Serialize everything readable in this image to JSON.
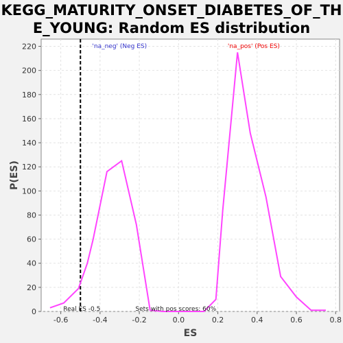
{
  "chart_data": {
    "type": "line",
    "title": "KEGG_MATURITY_ONSET_DIABETES_OF_THE_YOUNG: Random ES distribution",
    "xlabel": "ES",
    "ylabel": "P(ES)",
    "xlim": [
      -0.7,
      0.82
    ],
    "ylim": [
      0,
      226
    ],
    "x_ticks": [
      -0.6,
      -0.4,
      -0.2,
      0.0,
      0.2,
      0.4,
      0.6,
      0.8
    ],
    "x_tick_labels": [
      "-0.6",
      "-0.4",
      "-0.2",
      "0.0",
      "0.2",
      "0.4",
      "0.6",
      "0.8"
    ],
    "y_ticks": [
      0,
      20,
      40,
      60,
      80,
      100,
      120,
      140,
      160,
      180,
      200,
      220
    ],
    "y_tick_labels": [
      "0",
      "20",
      "40",
      "60",
      "80",
      "100",
      "120",
      "140",
      "160",
      "180",
      "200",
      "220"
    ],
    "grid": true,
    "series": [
      {
        "color": "#ff44ff",
        "x": [
          -0.655,
          -0.585,
          -0.51,
          -0.465,
          -0.435,
          -0.365,
          -0.29,
          -0.215,
          -0.145,
          -0.08,
          -0.01,
          0.065,
          0.13,
          0.19,
          0.225,
          0.3,
          0.365,
          0.445,
          0.52,
          0.6,
          0.675,
          0.75
        ],
        "y": [
          3,
          7,
          19,
          40,
          60,
          116,
          125,
          72,
          1,
          0,
          0,
          0,
          0,
          10,
          84,
          215,
          148,
          95,
          29,
          12,
          1,
          1
        ]
      }
    ],
    "real_es": {
      "x": -0.5,
      "label": "Real ES -0.5"
    },
    "annotations": [
      {
        "text": "'na_neg' (Neg ES)",
        "x": -0.44,
        "color": "#3333cc"
      },
      {
        "text": "'na_pos' (Pos ES)",
        "x": 0.25,
        "color": "#ee0000"
      }
    ],
    "footer_text": "Sets with pos scores: 60%"
  }
}
